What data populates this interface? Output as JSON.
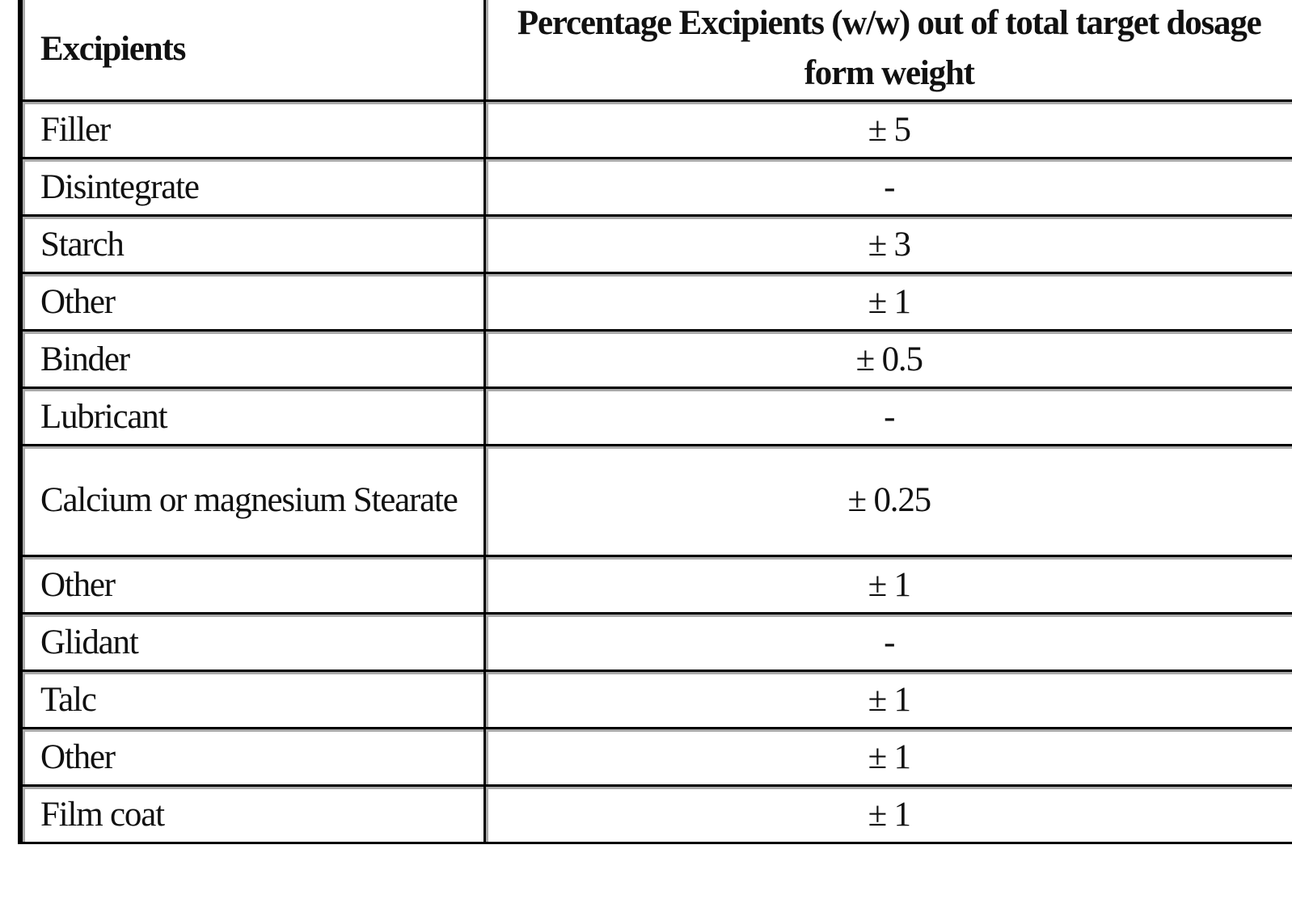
{
  "table": {
    "headers": [
      "Excipients",
      "Percentage Excipients (w/w) out of total target dosage form weight"
    ],
    "rows": [
      [
        "Filler",
        "± 5"
      ],
      [
        "Disintegrate",
        "-"
      ],
      [
        "Starch",
        "± 3"
      ],
      [
        "Other",
        "± 1"
      ],
      [
        "Binder",
        "± 0.5"
      ],
      [
        "Lubricant",
        "-"
      ],
      [
        "Calcium or magnesium Stearate",
        "± 0.25"
      ],
      [
        "Other",
        "± 1"
      ],
      [
        "Glidant",
        "-"
      ],
      [
        "Talc",
        "± 1"
      ],
      [
        "Other",
        "± 1"
      ],
      [
        "Film coat",
        "± 1"
      ]
    ]
  }
}
